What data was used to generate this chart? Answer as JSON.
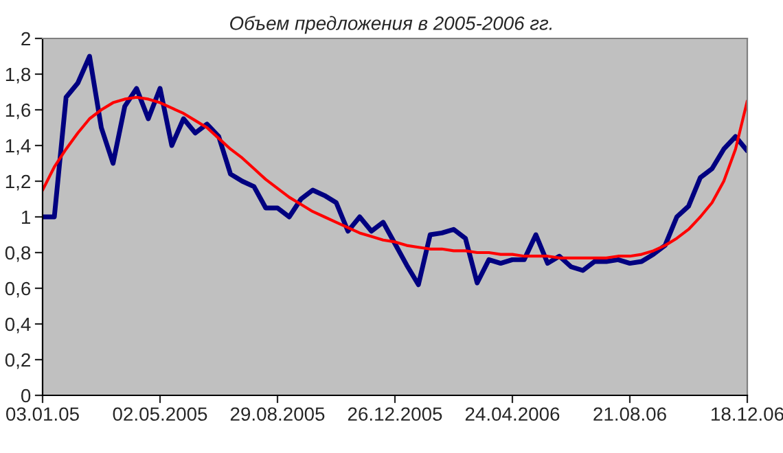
{
  "chart_data": {
    "type": "line",
    "title": "Объем предложения в 2005-2006 гг.",
    "categories": [
      "03.01.05",
      null,
      null,
      null,
      null,
      null,
      null,
      null,
      null,
      null,
      "02.05.2005",
      null,
      null,
      null,
      null,
      null,
      null,
      null,
      null,
      null,
      "29.08.2005",
      null,
      null,
      null,
      null,
      null,
      null,
      null,
      null,
      null,
      "26.12.2005",
      null,
      null,
      null,
      null,
      null,
      null,
      null,
      null,
      null,
      "24.04.2006",
      null,
      null,
      null,
      null,
      null,
      null,
      null,
      null,
      null,
      "21.08.06",
      null,
      null,
      null,
      null,
      null,
      null,
      null,
      null,
      null,
      "18.12.06"
    ],
    "series": [
      {
        "color": "#000080",
        "values": [
          1.0,
          1.0,
          1.67,
          1.75,
          1.9,
          1.5,
          1.3,
          1.62,
          1.72,
          1.55,
          1.72,
          1.4,
          1.55,
          1.47,
          1.52,
          1.45,
          1.24,
          1.2,
          1.17,
          1.05,
          1.05,
          1.0,
          1.1,
          1.15,
          1.12,
          1.08,
          0.92,
          1.0,
          0.92,
          0.97,
          0.85,
          0.73,
          0.62,
          0.9,
          0.91,
          0.93,
          0.88,
          0.63,
          0.76,
          0.74,
          0.76,
          0.76,
          0.9,
          0.74,
          0.78,
          0.72,
          0.7,
          0.75,
          0.75,
          0.76,
          0.74,
          0.75,
          0.79,
          0.84,
          1.0,
          1.06,
          1.22,
          1.27,
          1.38,
          1.45,
          1.37
        ]
      },
      {
        "color": "#ff0000",
        "values": [
          1.15,
          1.28,
          1.38,
          1.47,
          1.55,
          1.6,
          1.64,
          1.66,
          1.67,
          1.66,
          1.64,
          1.61,
          1.58,
          1.54,
          1.5,
          1.44,
          1.38,
          1.33,
          1.27,
          1.21,
          1.16,
          1.11,
          1.07,
          1.03,
          1.0,
          0.97,
          0.94,
          0.91,
          0.89,
          0.87,
          0.86,
          0.84,
          0.83,
          0.82,
          0.82,
          0.81,
          0.81,
          0.8,
          0.8,
          0.79,
          0.79,
          0.78,
          0.78,
          0.78,
          0.77,
          0.77,
          0.77,
          0.77,
          0.77,
          0.78,
          0.78,
          0.79,
          0.81,
          0.84,
          0.88,
          0.93,
          1.0,
          1.08,
          1.2,
          1.38,
          1.65
        ]
      }
    ],
    "ylim": [
      0,
      2
    ],
    "yticks": [
      0,
      {
        "value": 0.2,
        "label": "0,2"
      },
      {
        "value": 0.4,
        "label": "0,4"
      },
      {
        "value": 0.6,
        "label": "0,6"
      },
      {
        "value": 0.8,
        "label": "0,8"
      },
      1,
      {
        "value": 1.2,
        "label": "1,2"
      },
      {
        "value": 1.4,
        "label": "1,4"
      },
      {
        "value": 1.6,
        "label": "1,6"
      },
      {
        "value": 1.8,
        "label": "1,8"
      },
      2
    ],
    "grid": false,
    "legend": false,
    "marker": "none",
    "line_style": "solid"
  }
}
